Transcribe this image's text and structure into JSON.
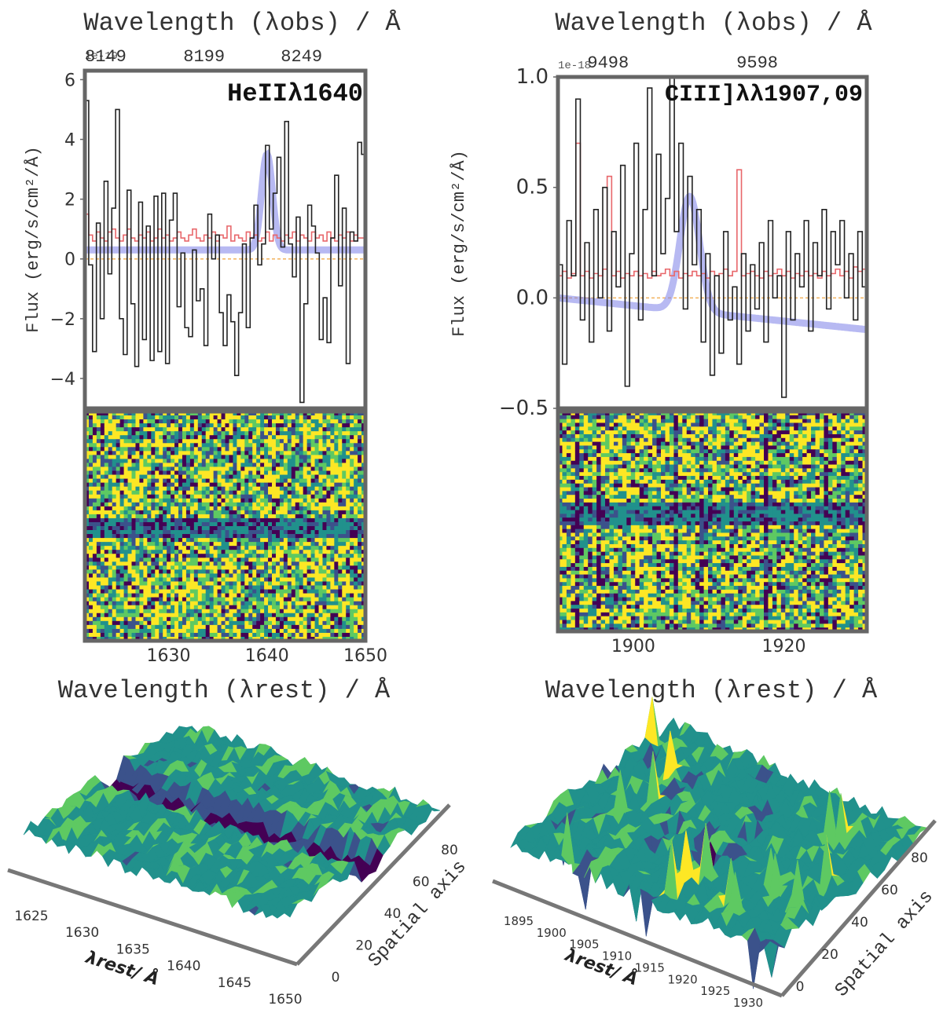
{
  "chart_data": [
    {
      "type": "line",
      "title": "HeIIλ1640",
      "top_axis_label": "Wavelength (λobs) / Å",
      "top_ticks": [
        "8149",
        "8199",
        "8249"
      ],
      "top_tick_values": [
        1621.5,
        1631.5,
        1641.4
      ],
      "offset_label": "1e-19",
      "ylabel": "Flux (erg/s/cm²/Å)",
      "ylim": [
        -5,
        6.3
      ],
      "yticks": [
        -4,
        -2,
        0,
        2,
        4,
        6
      ],
      "xlim": [
        1621.5,
        1650
      ],
      "xticks": [
        1630,
        1640,
        1650
      ],
      "xlabel": "Wavelength (λrest) / Å",
      "series": [
        {
          "name": "data",
          "color": "#222222",
          "values": [
            5.3,
            -0.2,
            -3.1,
            1.2,
            -2.0,
            2.6,
            -0.5,
            1.7,
            5.0,
            -2.0,
            -3.2,
            2.3,
            -1.5,
            -3.6,
            1.9,
            -2.7,
            1.1,
            -3.4,
            2.1,
            -3.1,
            2.2,
            -3.5,
            1.3,
            2.2,
            -1.6,
            0.2,
            -2.3,
            -2.6,
            0.3,
            -1.4,
            -1.0,
            -2.9,
            1.5,
            0.0,
            0.8,
            -1.8,
            -2.9,
            -1.2,
            -2.1,
            -3.9,
            -1.8,
            0.5,
            -2.3,
            0.7,
            1.8,
            -0.2,
            0.5,
            3.8,
            1.0,
            2.2,
            3.4,
            0.4,
            4.6,
            0.5,
            -0.6,
            1.4,
            -4.8,
            -1.5,
            1.8,
            1.1,
            0.2,
            -2.7,
            -1.3,
            -2.8,
            0.7,
            2.8,
            -0.9,
            1.7,
            -3.5,
            0.9,
            0.6,
            3.9,
            3.5
          ]
        },
        {
          "name": "noise",
          "color": "#e8676b",
          "values": [
            1.5,
            0.8,
            0.6,
            0.9,
            0.7,
            0.6,
            0.9,
            1.0,
            0.7,
            0.6,
            0.8,
            1.0,
            0.7,
            0.6,
            0.8,
            0.7,
            0.9,
            0.6,
            0.7,
            1.0,
            0.7,
            0.8,
            0.6,
            0.7,
            0.9,
            0.7,
            0.6,
            0.8,
            1.0,
            0.7,
            0.6,
            0.8,
            0.7,
            0.9,
            0.6,
            0.8,
            0.7,
            1.1,
            0.6,
            0.8,
            0.7,
            0.6,
            0.9,
            0.7,
            0.8,
            0.6,
            0.7,
            0.9,
            0.6,
            0.8,
            0.7,
            0.6,
            0.8,
            0.7,
            0.9,
            0.6,
            0.8,
            0.7,
            0.6,
            0.9,
            0.7,
            0.8,
            0.6,
            0.9,
            0.7,
            0.6,
            0.8,
            0.7,
            0.9,
            0.6,
            0.8,
            0.7,
            0.7
          ]
        },
        {
          "name": "gaussian fit",
          "color": "#7b7fe8",
          "continuum": 0.3,
          "amplitude": 3.2,
          "center": 1640.0,
          "sigma": 0.55
        }
      ],
      "zero_line": {
        "color": "#f2b25c",
        "value": 0
      }
    },
    {
      "type": "line",
      "title": "CIII]λλ1907,09",
      "top_axis_label": "Wavelength (λobs) / Å",
      "top_ticks": [
        "9498",
        "9598"
      ],
      "top_tick_values": [
        1893.9,
        1913.7
      ],
      "offset_label": "1e-18",
      "ylabel": "Flux (erg/s/cm²/Å)",
      "ylim": [
        -0.5,
        1.0
      ],
      "yticks": [
        -0.5,
        0.0,
        0.5,
        1.0
      ],
      "xlim": [
        1890,
        1931
      ],
      "xticks": [
        1900,
        1920
      ],
      "xlabel": "Wavelength (λrest) / Å",
      "series": [
        {
          "name": "data",
          "color": "#222222",
          "values": [
            0.15,
            -0.3,
            0.35,
            0.1,
            0.9,
            -0.1,
            0.25,
            -0.2,
            0.4,
            0.0,
            0.5,
            -0.15,
            0.3,
            0.05,
            0.6,
            -0.4,
            0.2,
            0.7,
            -0.1,
            0.4,
            0.95,
            0.1,
            0.65,
            0.2,
            0.45,
            1.0,
            0.3,
            0.7,
            -0.05,
            0.55,
            0.15,
            0.4,
            -0.2,
            0.2,
            -0.35,
            0.1,
            -0.25,
            0.3,
            -0.1,
            0.05,
            -0.3,
            0.2,
            -0.15,
            0.15,
            -0.05,
            0.25,
            -0.2,
            0.35,
            0.0,
            0.1,
            -0.45,
            0.3,
            -0.1,
            0.2,
            0.05,
            0.35,
            -0.15,
            0.25,
            0.1,
            0.4,
            -0.05,
            0.3,
            0.15,
            0.35,
            0.0,
            0.2,
            -0.1,
            0.3,
            0.05
          ]
        },
        {
          "name": "noise",
          "color": "#e8676b",
          "values": [
            0.1,
            0.12,
            0.09,
            0.11,
            0.7,
            0.1,
            0.12,
            0.09,
            0.11,
            0.1,
            0.13,
            0.55,
            0.1,
            0.12,
            0.09,
            0.11,
            0.1,
            0.12,
            0.1,
            0.11,
            0.09,
            0.12,
            0.1,
            0.11,
            0.13,
            0.1,
            0.12,
            0.09,
            0.11,
            0.1,
            0.12,
            0.1,
            0.11,
            0.09,
            0.12,
            0.1,
            0.11,
            0.13,
            0.1,
            0.12,
            0.58,
            0.1,
            0.11,
            0.12,
            0.1,
            0.09,
            0.12,
            0.1,
            0.11,
            0.13,
            0.1,
            0.12,
            0.09,
            0.11,
            0.1,
            0.12,
            0.1,
            0.11,
            0.09,
            0.12,
            0.1,
            0.11,
            0.13,
            0.1,
            0.12,
            0.09,
            0.14,
            0.12,
            0.13
          ]
        },
        {
          "name": "gaussian fit",
          "color": "#7b7fe8",
          "continuum": 0.0,
          "slope": -0.0035,
          "amplitude": 0.52,
          "center": 1907.5,
          "sigma": 1.3
        }
      ],
      "zero_line": {
        "color": "#f2b25c",
        "value": 0
      }
    },
    {
      "type": "heatmap",
      "name": "2D spectrum HeII",
      "colormap": [
        "#440154",
        "#3b528b",
        "#21918c",
        "#5ec962",
        "#fde725"
      ],
      "dark_row": 0.5
    },
    {
      "type": "heatmap",
      "name": "2D spectrum CIII]",
      "colormap": [
        "#440154",
        "#3b528b",
        "#21918c",
        "#5ec962",
        "#fde725"
      ],
      "dark_row": 0.5
    },
    {
      "type": "area",
      "name": "3D surface HeII",
      "x_axis_label": "λrest/ Å",
      "y_axis_label": "Spatial axis",
      "x_ticks": [
        "1625",
        "1630",
        "1635",
        "1640",
        "1645",
        "1650"
      ],
      "y_ticks": [
        "0",
        "20",
        "40",
        "60",
        "80"
      ]
    },
    {
      "type": "area",
      "name": "3D surface CIII]",
      "x_axis_label": "λrest/ Å",
      "y_axis_label": "Spatial axis",
      "x_ticks": [
        "1895",
        "1900",
        "1905",
        "1910",
        "1915",
        "1920",
        "1925",
        "1930"
      ],
      "y_ticks": [
        "0",
        "20",
        "40",
        "60",
        "80"
      ]
    }
  ]
}
